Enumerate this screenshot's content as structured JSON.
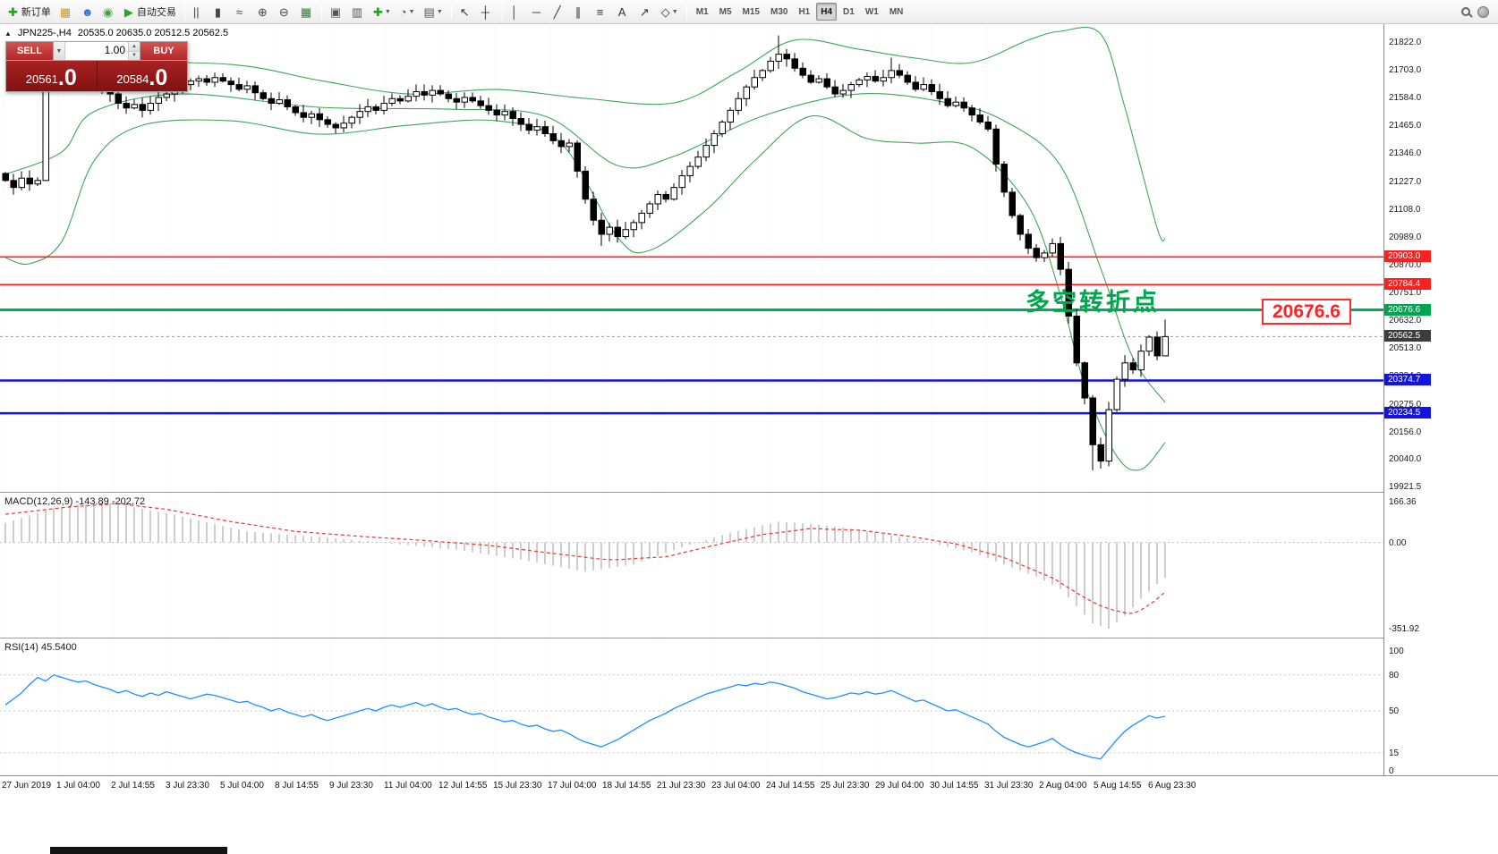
{
  "toolbar": {
    "items": [
      {
        "type": "button",
        "name": "new-order-button",
        "glyph": "✚",
        "color": "#1fa01f",
        "label": "新订单"
      },
      {
        "type": "button",
        "name": "new-chart-icon",
        "glyph": "▦",
        "color": "#d09a1a"
      },
      {
        "type": "button",
        "name": "profiles-icon",
        "glyph": "☻",
        "color": "#3b6fd4"
      },
      {
        "type": "button",
        "name": "data-window-icon",
        "glyph": "◉",
        "color": "#4a9f4a"
      },
      {
        "type": "button",
        "name": "autotrading-button",
        "glyph": "▶",
        "color": "#2da12d",
        "label": "自动交易"
      },
      {
        "type": "sep"
      },
      {
        "type": "button",
        "name": "ohlc-bars-icon",
        "glyph": "||",
        "color": "#444"
      },
      {
        "type": "button",
        "name": "candlestick-chart-icon",
        "glyph": "▮",
        "color": "#444"
      },
      {
        "type": "button",
        "name": "line-chart-icon",
        "glyph": "≈",
        "color": "#444"
      },
      {
        "type": "button",
        "name": "zoom-in-icon",
        "glyph": "⊕",
        "color": "#444"
      },
      {
        "type": "button",
        "name": "zoom-out-icon",
        "glyph": "⊖",
        "color": "#444"
      },
      {
        "type": "button",
        "name": "grid-icon",
        "glyph": "▦",
        "color": "#2e7d32"
      },
      {
        "type": "sep"
      },
      {
        "type": "button",
        "name": "tile-windows-icon",
        "glyph": "▣",
        "color": "#555"
      },
      {
        "type": "button",
        "name": "cascade-windows-icon",
        "glyph": "▥",
        "color": "#555"
      },
      {
        "type": "button",
        "name": "indicators-button",
        "glyph": "✚",
        "color": "#1fa01f",
        "caret": true
      },
      {
        "type": "button",
        "name": "periods-button",
        "glyph": "◔",
        "color": "#555",
        "caret": true
      },
      {
        "type": "button",
        "name": "templates-button",
        "glyph": "▤",
        "color": "#555",
        "caret": true
      },
      {
        "type": "sep"
      },
      {
        "type": "button",
        "name": "cursor-icon",
        "glyph": "↖",
        "color": "#333"
      },
      {
        "type": "button",
        "name": "crosshair-icon",
        "glyph": "┼",
        "color": "#333"
      },
      {
        "type": "sep"
      },
      {
        "type": "button",
        "name": "vertical-line-icon",
        "glyph": "│",
        "color": "#333"
      },
      {
        "type": "button",
        "name": "horizontal-line-icon",
        "glyph": "─",
        "color": "#333"
      },
      {
        "type": "button",
        "name": "trendline-icon",
        "glyph": "╱",
        "color": "#333"
      },
      {
        "type": "button",
        "name": "channel-icon",
        "glyph": "∥",
        "color": "#333"
      },
      {
        "type": "button",
        "name": "fibonacci-icon",
        "glyph": "≡",
        "color": "#333"
      },
      {
        "type": "button",
        "name": "text-icon",
        "glyph": "A",
        "color": "#333"
      },
      {
        "type": "button",
        "name": "arrows-icon",
        "glyph": "↗",
        "color": "#333"
      },
      {
        "type": "button",
        "name": "shapes-button",
        "glyph": "◇",
        "color": "#333",
        "caret": true
      },
      {
        "type": "sep"
      }
    ],
    "timeframes": [
      "M1",
      "M5",
      "M15",
      "M30",
      "H1",
      "H4",
      "D1",
      "W1",
      "MN"
    ],
    "active_timeframe": "H4"
  },
  "chart": {
    "collapse_marker": "▲",
    "symbol_period": "JPN225-,H4",
    "ohlc_text": "20535.0 20635.0 20512.5 20562.5"
  },
  "trade_panel": {
    "sell_label": "SELL",
    "buy_label": "BUY",
    "volume": "1.00",
    "volume_dropdown_glyph": "▼",
    "spin_up_glyph": "▲",
    "spin_down_glyph": "▼",
    "sell_price": "20561",
    "sell_price_frac": ".0",
    "buy_price": "20584",
    "buy_price_frac": ".0"
  },
  "annotation": {
    "text": "多空转折点",
    "callout": "20676.6"
  },
  "indicators": {
    "macd_label": "MACD(12,26,9) -143.89 -202.72",
    "rsi_label": "RSI(14) 45.5400"
  },
  "price_axis": {
    "ticks": [
      "21822.0",
      "21703.0",
      "21584.0",
      "21465.0",
      "21346.0",
      "21227.0",
      "21108.0",
      "20989.0",
      "20870.0",
      "20751.0",
      "20632.0",
      "20513.0",
      "20394.0",
      "20275.0",
      "20156.0",
      "20040.0",
      "19921.5"
    ],
    "tags": [
      {
        "label": "20903.0",
        "price": 20903.0,
        "bg": "#ff1f1f"
      },
      {
        "label": "20784.4",
        "price": 20784.4,
        "bg": "#ff1f1f"
      },
      {
        "label": "20676.6",
        "price": 20676.6,
        "bg": "#00a64f"
      },
      {
        "label": "20562.5",
        "price": 20562.5,
        "bg": "#3c3c3c"
      },
      {
        "label": "20374.7",
        "price": 20374.7,
        "bg": "#1414e0"
      },
      {
        "label": "20234.5",
        "price": 20234.5,
        "bg": "#1414e0"
      }
    ],
    "macd_axis": [
      "166.36",
      "0.00",
      "-351.92"
    ],
    "macd_axis_values": [
      166.36,
      0,
      -351.92
    ],
    "rsi_axis": [
      "100",
      "80",
      "50",
      "15",
      "0"
    ],
    "rsi_axis_values": [
      100,
      80,
      50,
      15,
      0
    ]
  },
  "time_axis": {
    "labels": [
      "27 Jun 2019",
      "1 Jul 04:00",
      "2 Jul 14:55",
      "3 Jul 23:30",
      "5 Jul 04:00",
      "8 Jul 14:55",
      "9 Jul 23:30",
      "11 Jul 04:00",
      "12 Jul 14:55",
      "15 Jul 23:30",
      "17 Jul 04:00",
      "18 Jul 14:55",
      "21 Jul 23:30",
      "23 Jul 04:00",
      "24 Jul 14:55",
      "25 Jul 23:30",
      "29 Jul 04:00",
      "30 Jul 14:55",
      "31 Jul 23:30",
      "2 Aug 04:00",
      "5 Aug 14:55",
      "6 Aug 23:30"
    ]
  },
  "chart_data": {
    "type": "candlestick",
    "symbol": "JPN225-",
    "timeframe": "H4",
    "last_bar": {
      "open": 20535.0,
      "high": 20635.0,
      "low": 20512.5,
      "close": 20562.5
    },
    "price_range": [
      19921.5,
      21822.0
    ],
    "first_open": 21260,
    "closes": [
      21230,
      21200,
      21240,
      21215,
      21230,
      21700,
      21725,
      21710,
      21730,
      21700,
      21670,
      21645,
      21620,
      21600,
      21560,
      21540,
      21555,
      21530,
      21560,
      21585,
      21600,
      21620,
      21640,
      21655,
      21665,
      21650,
      21670,
      21655,
      21640,
      21620,
      21635,
      21605,
      21580,
      21560,
      21575,
      21545,
      21520,
      21500,
      21515,
      21490,
      21470,
      21455,
      21475,
      21500,
      21525,
      21545,
      21530,
      21560,
      21580,
      21570,
      21590,
      21610,
      21595,
      21615,
      21600,
      21580,
      21565,
      21585,
      21570,
      21550,
      21530,
      21510,
      21525,
      21495,
      21470,
      21445,
      21460,
      21430,
      21400,
      21375,
      21390,
      21270,
      21150,
      21060,
      21000,
      21030,
      20990,
      21020,
      21050,
      21090,
      21130,
      21170,
      21150,
      21200,
      21250,
      21290,
      21330,
      21380,
      21430,
      21480,
      21530,
      21580,
      21630,
      21670,
      21700,
      21740,
      21770,
      21750,
      21710,
      21680,
      21650,
      21665,
      21630,
      21600,
      21615,
      21640,
      21660,
      21675,
      21655,
      21670,
      21700,
      21680,
      21650,
      21620,
      21640,
      21610,
      21580,
      21550,
      21565,
      21540,
      21510,
      21480,
      21450,
      21300,
      21180,
      21080,
      21000,
      20940,
      20900,
      20920,
      20960,
      20850,
      20650,
      20450,
      20300,
      20100,
      20030,
      20250,
      20380,
      20450,
      20420,
      20500,
      20560,
      20480,
      20562.5
    ],
    "wick_overrides": {
      "5": {
        "low": 21430,
        "high": 21755
      },
      "74": {
        "low": 20950
      },
      "96": {
        "high": 21850
      },
      "110": {
        "high": 21755
      },
      "135": {
        "low": 19990
      },
      "136": {
        "low": 19998
      },
      "144": {
        "high": 20635,
        "low": 20512.5
      }
    },
    "bollinger": {
      "color": "#3fa45b",
      "upper": [
        [
          0,
          21612
        ],
        [
          7,
          21715
        ],
        [
          11,
          21734
        ],
        [
          28,
          21726
        ],
        [
          39,
          21658
        ],
        [
          50,
          21600
        ],
        [
          61,
          21619
        ],
        [
          72,
          21581
        ],
        [
          83,
          21562
        ],
        [
          91,
          21696
        ],
        [
          98,
          21830
        ],
        [
          106,
          21791
        ],
        [
          113,
          21753
        ],
        [
          120,
          21734
        ],
        [
          127,
          21830
        ],
        [
          131,
          21868
        ],
        [
          136,
          21856
        ],
        [
          139,
          21543
        ],
        [
          143,
          21027
        ],
        [
          144,
          20980
        ]
      ],
      "middle": [
        [
          0,
          21256
        ],
        [
          7,
          21352
        ],
        [
          11,
          21524
        ],
        [
          22,
          21600
        ],
        [
          39,
          21543
        ],
        [
          55,
          21535
        ],
        [
          67,
          21505
        ],
        [
          76,
          21294
        ],
        [
          83,
          21333
        ],
        [
          94,
          21505
        ],
        [
          106,
          21600
        ],
        [
          117,
          21562
        ],
        [
          124,
          21485
        ],
        [
          131,
          21294
        ],
        [
          136,
          20854
        ],
        [
          140,
          20472
        ],
        [
          144,
          20281
        ]
      ],
      "lower": [
        [
          0,
          20900
        ],
        [
          3,
          20874
        ],
        [
          7,
          20969
        ],
        [
          11,
          21313
        ],
        [
          17,
          21466
        ],
        [
          28,
          21485
        ],
        [
          39,
          21428
        ],
        [
          50,
          21466
        ],
        [
          61,
          21485
        ],
        [
          69,
          21390
        ],
        [
          76,
          20988
        ],
        [
          80,
          20931
        ],
        [
          87,
          21103
        ],
        [
          93,
          21313
        ],
        [
          100,
          21505
        ],
        [
          107,
          21409
        ],
        [
          113,
          21390
        ],
        [
          120,
          21371
        ],
        [
          127,
          21122
        ],
        [
          131,
          20740
        ],
        [
          134,
          20357
        ],
        [
          138,
          20051
        ],
        [
          141,
          19994
        ],
        [
          144,
          20109
        ]
      ]
    },
    "hlines": [
      {
        "price": 20903.0,
        "color": "#ff1f1f",
        "width": 1.6
      },
      {
        "price": 20784.4,
        "color": "#ff1f1f",
        "width": 1.6
      },
      {
        "price": 20676.6,
        "color": "#00b050",
        "width": 3
      },
      {
        "price": 20374.7,
        "color": "#1414e0",
        "width": 2.5
      },
      {
        "price": 20234.5,
        "color": "#1414e0",
        "width": 2.5
      }
    ],
    "current_price_line": {
      "price": 20562.5,
      "color": "#9a9a9a"
    },
    "macd": {
      "params": "12,26,9",
      "value": -143.89,
      "signal_value": -202.72,
      "range": [
        -351.92,
        166.36
      ],
      "histogram_anchors": [
        [
          0,
          80
        ],
        [
          6,
          140
        ],
        [
          12,
          166
        ],
        [
          20,
          120
        ],
        [
          30,
          45
        ],
        [
          40,
          20
        ],
        [
          48,
          -5
        ],
        [
          56,
          -30
        ],
        [
          64,
          -70
        ],
        [
          72,
          -120
        ],
        [
          78,
          -90
        ],
        [
          84,
          -20
        ],
        [
          90,
          40
        ],
        [
          96,
          85
        ],
        [
          102,
          70
        ],
        [
          108,
          40
        ],
        [
          114,
          5
        ],
        [
          120,
          -40
        ],
        [
          124,
          -90
        ],
        [
          128,
          -140
        ],
        [
          131,
          -190
        ],
        [
          133,
          -260
        ],
        [
          135,
          -330
        ],
        [
          137,
          -352
        ],
        [
          139,
          -300
        ],
        [
          141,
          -230
        ],
        [
          143,
          -170
        ],
        [
          144,
          -144
        ]
      ],
      "signal_anchors": [
        [
          0,
          115
        ],
        [
          8,
          145
        ],
        [
          14,
          158
        ],
        [
          20,
          135
        ],
        [
          28,
          85
        ],
        [
          36,
          45
        ],
        [
          44,
          25
        ],
        [
          52,
          8
        ],
        [
          60,
          -12
        ],
        [
          68,
          -45
        ],
        [
          75,
          -72
        ],
        [
          82,
          -58
        ],
        [
          88,
          -12
        ],
        [
          94,
          32
        ],
        [
          100,
          56
        ],
        [
          106,
          50
        ],
        [
          112,
          26
        ],
        [
          118,
          -6
        ],
        [
          124,
          -62
        ],
        [
          130,
          -145
        ],
        [
          134,
          -225
        ],
        [
          137,
          -275
        ],
        [
          140,
          -288
        ],
        [
          142,
          -255
        ],
        [
          144,
          -203
        ]
      ]
    },
    "rsi": {
      "period": 14,
      "value": 45.54,
      "levels": [
        80,
        50,
        15
      ],
      "values": [
        55,
        60,
        65,
        72,
        78,
        75,
        80,
        78,
        76,
        74,
        75,
        72,
        70,
        68,
        65,
        67,
        64,
        62,
        65,
        63,
        66,
        64,
        62,
        60,
        62,
        64,
        63,
        61,
        59,
        57,
        58,
        55,
        53,
        50,
        52,
        49,
        47,
        45,
        47,
        44,
        42,
        44,
        46,
        48,
        50,
        52,
        50,
        53,
        55,
        53,
        55,
        57,
        54,
        56,
        53,
        51,
        52,
        49,
        47,
        48,
        45,
        43,
        41,
        42,
        39,
        37,
        38,
        35,
        33,
        34,
        31,
        27,
        24,
        22,
        20,
        23,
        26,
        30,
        34,
        38,
        42,
        45,
        48,
        52,
        55,
        58,
        61,
        64,
        66,
        68,
        70,
        72,
        71,
        73,
        72,
        74,
        73,
        71,
        69,
        66,
        64,
        62,
        60,
        61,
        63,
        65,
        64,
        66,
        64,
        65,
        67,
        64,
        61,
        58,
        59,
        56,
        53,
        50,
        51,
        48,
        45,
        42,
        39,
        33,
        28,
        25,
        22,
        20,
        22,
        24,
        27,
        22,
        18,
        15,
        13,
        11,
        10,
        18,
        26,
        33,
        38,
        42,
        46,
        44,
        45.54
      ]
    }
  }
}
